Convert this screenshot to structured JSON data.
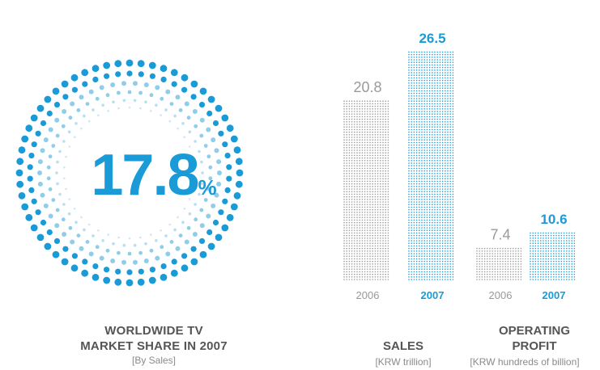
{
  "share": {
    "value": "17.8",
    "unit": "%",
    "title_line1": "WORLDWIDE TV",
    "title_line2": "MARKET SHARE IN 2007",
    "subtitle": "[By Sales]"
  },
  "sales": {
    "title": "SALES",
    "unit": "[KRW trillion]"
  },
  "operating_profit": {
    "title_line1": "OPERATING",
    "title_line2": "PROFIT",
    "unit": "[KRW hundreds of billion]"
  },
  "colors": {
    "accent": "#1a9bd7",
    "accent_light": "#8fcde9",
    "gray_bar": "#9a9a9a",
    "gray_text": "#999999"
  },
  "chart_data": [
    {
      "type": "bar",
      "categories": [
        "2006",
        "2007"
      ],
      "values": [
        20.8,
        26.5
      ],
      "value_labels": [
        "20.8",
        "26.5"
      ],
      "title": "SALES",
      "ylabel": "[KRW trillion]",
      "ylim": [
        0,
        26.5
      ]
    },
    {
      "type": "bar",
      "categories": [
        "2006",
        "2007"
      ],
      "values": [
        7.4,
        10.6
      ],
      "value_labels": [
        "7.4",
        "10.6"
      ],
      "title": "OPERATING PROFIT",
      "ylabel": "[KRW hundreds of billion]",
      "ylim": [
        0,
        10.6
      ]
    }
  ]
}
